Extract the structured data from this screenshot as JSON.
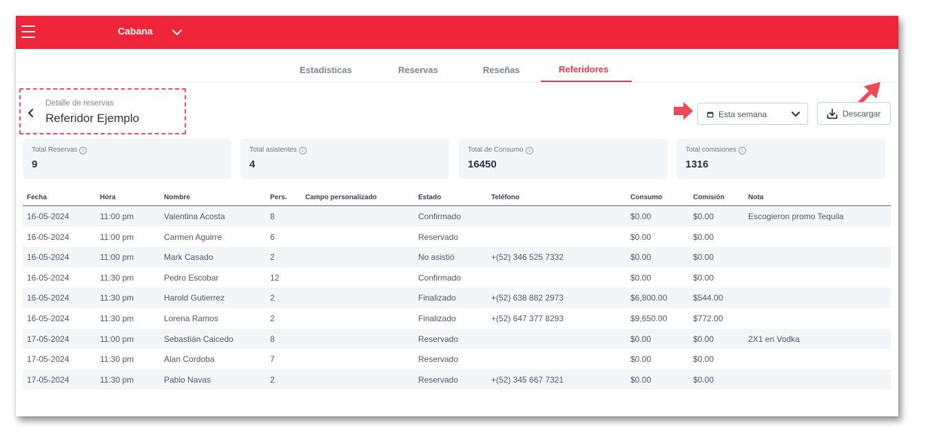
{
  "header": {
    "venue": "Cabana",
    "colors": {
      "brand": "#ee2439",
      "accent": "#e0394d"
    }
  },
  "tabs": [
    {
      "label": "Estadísticas",
      "active": false
    },
    {
      "label": "Reservas",
      "active": false
    },
    {
      "label": "Reseñas",
      "active": false
    },
    {
      "label": "Referidores",
      "active": true
    }
  ],
  "detail": {
    "subtitle": "Detalle de reservas",
    "title": "Referidor Ejemplo"
  },
  "filters": {
    "period": "Esta semana",
    "download_label": "Descargar"
  },
  "stats": [
    {
      "label": "Total Reservas",
      "value": "9"
    },
    {
      "label": "Total asistentes",
      "value": "4"
    },
    {
      "label": "Total de Consumo",
      "value": "16450"
    },
    {
      "label": "Total comisiones",
      "value": "1316"
    }
  ],
  "table": {
    "columns": [
      "Fecha",
      "Hora",
      "Nombre",
      "Pers.",
      "Campo personalizado",
      "Estado",
      "Teléfono",
      "Consumo",
      "Comisión",
      "Nota"
    ],
    "rows": [
      [
        "16-05-2024",
        "11:00 pm",
        "Valentina Acosta",
        "8",
        "",
        "Confirmado",
        "",
        "$0.00",
        "$0.00",
        "Escogieron promo Tequila"
      ],
      [
        "16-05-2024",
        "11:00 pm",
        "Carmen Aguirre",
        "6",
        "",
        "Reservado",
        "",
        "$0.00",
        "$0.00",
        ""
      ],
      [
        "16-05-2024",
        "11:00 pm",
        "Mark Casado",
        "2",
        "",
        "No asistió",
        "+(52) 346 525 7332",
        "$0.00",
        "$0.00",
        ""
      ],
      [
        "16-05-2024",
        "11:30 pm",
        "Pedro Escobar",
        "12",
        "",
        "Confirmado",
        "",
        "$0.00",
        "$0.00",
        ""
      ],
      [
        "16-05-2024",
        "11:30 pm",
        "Harold Gutierrez",
        "2",
        "",
        "Finalizado",
        "+(52) 638 882 2973",
        "$6,800.00",
        "$544.00",
        ""
      ],
      [
        "16-05-2024",
        "11:30 pm",
        "Lorena Ramos",
        "2",
        "",
        "Finalizado",
        "+(52) 647 377 8293",
        "$9,650.00",
        "$772.00",
        ""
      ],
      [
        "17-05-2024",
        "11:00 pm",
        "Sebastián Caicedo",
        "8",
        "",
        "Reservado",
        "",
        "$0.00",
        "$0.00",
        "2X1 en Vodka"
      ],
      [
        "17-05-2024",
        "11:30 pm",
        "Alan Cordoba",
        "7",
        "",
        "Reservado",
        "",
        "$0.00",
        "$0.00",
        ""
      ],
      [
        "17-05-2024",
        "11:30 pm",
        "Pablo Navas",
        "2",
        "",
        "Reservado",
        "+(52) 345 667 7321",
        "$0.00",
        "$0.00",
        ""
      ]
    ]
  },
  "icons": {
    "menu": "hamburger-menu-icon",
    "venue_dropdown": "chevron-down-icon",
    "back": "chevron-left-icon",
    "calendar": "calendar-icon",
    "select_dropdown": "chevron-down-icon",
    "download": "download-icon",
    "info": "info-icon",
    "annotation_arrow": "arrow-icon"
  }
}
